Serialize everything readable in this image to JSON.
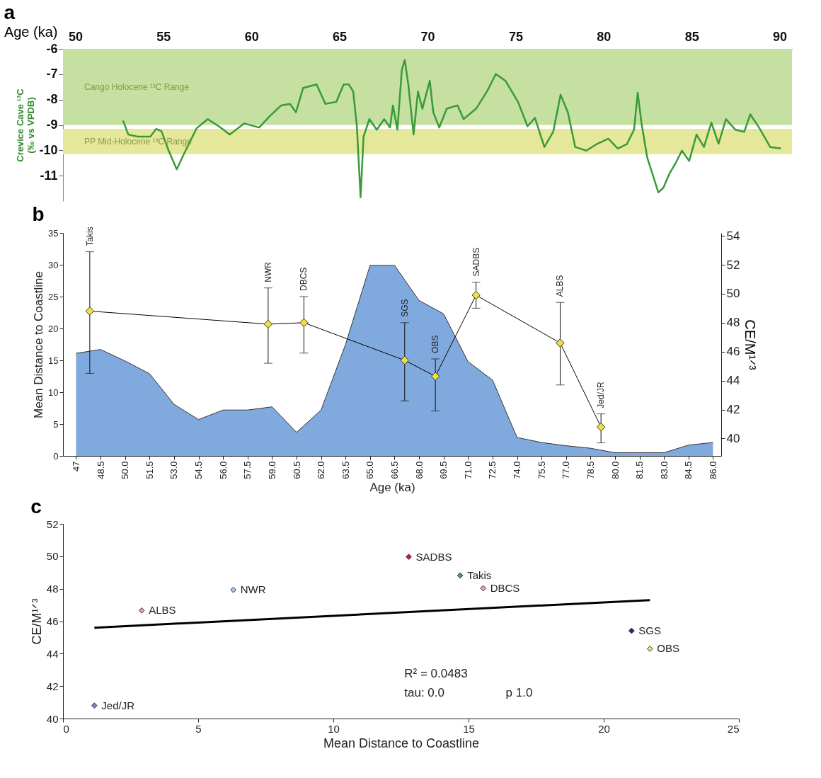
{
  "chart_data": [
    {
      "type": "line",
      "title": "a",
      "xlabel": "Age (ka)",
      "ylabel": "Crevice Cave ¹³C\n(‰ vs VPDB)",
      "xlim": [
        49.3,
        90.7
      ],
      "xticks": [
        50,
        55,
        60,
        65,
        70,
        75,
        80,
        85,
        90
      ],
      "ylim": [
        -12,
        -6
      ],
      "yticks": [
        -11,
        -10,
        -9,
        -8,
        -7,
        -6
      ],
      "grid": false,
      "marker": "none",
      "x": [
        52.71,
        53.01,
        53.55,
        54.26,
        54.59,
        54.89,
        55.3,
        55.76,
        56.26,
        56.89,
        57.52,
        58.14,
        58.77,
        59.6,
        60.44,
        61.06,
        61.69,
        62.19,
        62.53,
        62.94,
        63.7,
        64.2,
        64.82,
        65.24,
        65.53,
        65.78,
        65.99,
        66.2,
        66.37,
        66.7,
        67.12,
        67.54,
        67.87,
        68.04,
        68.29,
        68.54,
        68.71,
        68.91,
        69.21,
        69.46,
        69.71,
        70.13,
        70.33,
        70.67,
        71.09,
        71.71,
        72.05,
        72.76,
        73.38,
        73.88,
        74.43,
        75.14,
        75.68,
        76.1,
        76.64,
        77.14,
        77.56,
        77.97,
        78.39,
        79.02,
        79.65,
        80.27,
        80.81,
        81.32,
        81.73,
        81.94,
        82.15,
        82.48,
        82.86,
        83.11,
        83.4,
        83.74,
        84.11,
        84.45,
        84.86,
        85.28,
        85.7,
        86.12,
        86.53,
        86.95,
        87.49,
        87.99,
        88.33,
        88.83,
        89.46,
        90.08
      ],
      "series": [
        {
          "color": "#3a9a3a",
          "values": [
            -8.83,
            -9.38,
            -9.46,
            -9.46,
            -9.16,
            -9.24,
            -10.01,
            -10.75,
            -10.01,
            -9.13,
            -8.77,
            -9.05,
            -9.38,
            -8.94,
            -9.1,
            -8.64,
            -8.23,
            -8.17,
            -8.5,
            -7.54,
            -7.4,
            -8.17,
            -8.09,
            -7.4,
            -7.4,
            -7.68,
            -9.05,
            -11.85,
            -9.46,
            -8.77,
            -9.19,
            -8.77,
            -9.1,
            -8.23,
            -9.19,
            -6.85,
            -6.44,
            -7.4,
            -9.38,
            -7.68,
            -8.36,
            -7.26,
            -8.5,
            -9.1,
            -8.36,
            -8.23,
            -8.77,
            -8.36,
            -7.68,
            -6.99,
            -7.26,
            -8.09,
            -9.05,
            -8.72,
            -9.87,
            -9.27,
            -7.81,
            -8.5,
            -9.87,
            -10.01,
            -9.74,
            -9.54,
            -9.93,
            -9.76,
            -9.19,
            -7.73,
            -8.91,
            -10.29,
            -11.11,
            -11.66,
            -11.47,
            -10.92,
            -10.48,
            -10.01,
            -10.42,
            -9.38,
            -9.87,
            -8.91,
            -9.74,
            -8.77,
            -9.19,
            -9.27,
            -8.58,
            -9.1,
            -9.87,
            -9.93
          ]
        }
      ],
      "bands": [
        {
          "axis": "y",
          "from": -9,
          "to": -6,
          "label": "Cango Holocene ¹³C Range",
          "color": "#c5e0a0"
        },
        {
          "axis": "y",
          "from": -10.15,
          "to": -9.15,
          "label": "PP Mid-Holocene ¹³C Range",
          "color": "#e5e89a"
        }
      ]
    },
    {
      "type": "area",
      "title": "b",
      "xlabel": "Age (ka)",
      "ylabel": "Mean Distance to Coastline",
      "y2label": "CE/M¹ᐟ³",
      "xlim": [
        46.2,
        86.5
      ],
      "xticks": [
        47,
        48.5,
        {
          "value": 50,
          "label": "50.0"
        },
        51.5,
        {
          "value": 53,
          "label": "53.0"
        },
        54.5,
        {
          "value": 56,
          "label": "56.0"
        },
        57.5,
        {
          "value": 59,
          "label": "59.0"
        },
        60.5,
        {
          "value": 62,
          "label": "62.0"
        },
        63.5,
        {
          "value": 65,
          "label": "65.0"
        },
        66.5,
        {
          "value": 68,
          "label": "68.0"
        },
        69.5,
        {
          "value": 71,
          "label": "71.0"
        },
        72.5,
        {
          "value": 74,
          "label": "74.0"
        },
        75.5,
        {
          "value": 77,
          "label": "77.0"
        },
        78.5,
        {
          "value": 80,
          "label": "80.0"
        },
        81.5,
        {
          "value": 83,
          "label": "83.0"
        },
        84.5,
        {
          "value": 86,
          "label": "86.0"
        }
      ],
      "ylim": [
        0,
        35
      ],
      "yticks": [
        0,
        5,
        10,
        15,
        20,
        25,
        30,
        35
      ],
      "y2lim": [
        38.8,
        54.2
      ],
      "y2ticks": [
        40,
        42,
        44,
        46,
        48,
        50,
        52,
        54
      ],
      "grid": false,
      "marker": "diamond",
      "series": [
        {
          "type": "area",
          "marker": "none",
          "color": "#80aadd",
          "x": [
            47,
            48.5,
            50,
            51.5,
            53,
            54.5,
            56,
            57.5,
            59,
            60.5,
            62,
            63.5,
            65,
            66.5,
            68,
            69.5,
            71,
            72.5,
            74,
            75.5,
            77,
            78.5,
            80,
            81.5,
            83,
            84.5,
            86
          ],
          "values": [
            16.1,
            16.7,
            14.9,
            12.9,
            8.1,
            5.7,
            7.2,
            7.2,
            7.7,
            3.7,
            7.2,
            17.5,
            29.9,
            29.9,
            24.4,
            22.3,
            14.8,
            11.9,
            2.9,
            2.1,
            1.6,
            1.2,
            0.5,
            0.5,
            0.5,
            1.7,
            2.1
          ]
        },
        {
          "type": "line",
          "axis": "y2",
          "color": "#000000",
          "colors": [
            "#f0e040",
            "#f0e040",
            "#f0e040",
            "#f0e040",
            "#f0e040",
            "#f0e040",
            "#f0e040",
            "#f0e040"
          ],
          "x": [
            47.84,
            58.76,
            60.95,
            67.12,
            69.0,
            71.49,
            76.64,
            79.14
          ],
          "values": [
            48.8,
            47.9,
            48.0,
            45.4,
            44.3,
            49.9,
            46.6,
            40.8
          ],
          "errors": [
            [
              44.5,
              52.9
            ],
            [
              45.2,
              50.4
            ],
            [
              45.9,
              49.8
            ],
            [
              42.6,
              48.0
            ],
            [
              41.9,
              45.5
            ],
            [
              49.0,
              50.8
            ],
            [
              43.7,
              49.4
            ],
            [
              39.7,
              41.7
            ]
          ]
        }
      ],
      "annotations": [
        "Takis",
        "NWR",
        "DBCS",
        "SGS",
        "OBS",
        "SADBS",
        "ALBS",
        "Jed/JR"
      ]
    },
    {
      "type": "scatter",
      "title": "c",
      "xlabel": "Mean Distance to Coastline",
      "ylabel": "CE/M¹ᐟ³",
      "xlim": [
        0,
        25
      ],
      "xticks": [
        0,
        5,
        10,
        15,
        20,
        25
      ],
      "ylim": [
        40,
        52
      ],
      "yticks": [
        40,
        42,
        44,
        46,
        48,
        50,
        52
      ],
      "grid": false,
      "marker": "diamond",
      "series": [
        {
          "type": "scatter",
          "x": [
            1.16,
            2.91,
            6.3,
            12.79,
            14.69,
            15.54,
            21.03,
            21.71
          ],
          "values": [
            40.8,
            46.66,
            47.93,
            49.97,
            48.82,
            48.03,
            45.41,
            44.3
          ],
          "colors": [
            "#8e7cc3",
            "#e8a0a0",
            "#a8c8f0",
            "#c0206a",
            "#4a9a8a",
            "#f0a0b0",
            "#1a2a80",
            "#e8e070"
          ],
          "value_labels": [
            "Jed/JR",
            "ALBS",
            "NWR",
            "SADBS",
            "Takis",
            "DBCS",
            "SGS",
            "OBS"
          ]
        },
        {
          "type": "line",
          "marker": "none",
          "color": "#000000",
          "x": [
            1.16,
            21.71
          ],
          "values": [
            45.6,
            47.3
          ]
        }
      ],
      "annotations": [
        "R² = 0.0483",
        "tau:  0.0",
        "p 1.0"
      ]
    }
  ]
}
